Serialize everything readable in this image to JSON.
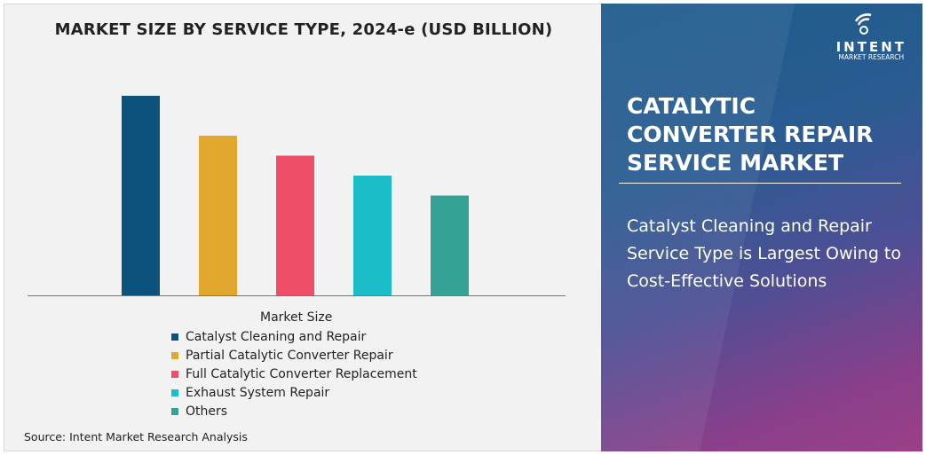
{
  "chart_data": {
    "type": "bar",
    "title": "MARKET SIZE BY SERVICE TYPE, 2024-e (USD BILLION)",
    "categories": [
      "Catalyst Cleaning and Repair",
      "Partial Catalytic Converter Repair",
      "Full Catalytic Converter Replacement",
      "Exhaust System Repair",
      "Others"
    ],
    "values": [
      100,
      80,
      70,
      60,
      50
    ],
    "colors": [
      "#0b527c",
      "#e1a62e",
      "#ef4d68",
      "#1bbdc9",
      "#36a196"
    ],
    "legend_title": "Market Size",
    "legend_position": "bottom",
    "grid": false,
    "ylim": [
      0,
      100
    ]
  },
  "source": "Source: Intent Market Research Analysis",
  "panel": {
    "title_lines": [
      "CATALYTIC",
      "CONVERTER REPAIR",
      "SERVICE MARKET"
    ],
    "description": "Catalyst Cleaning and Repair Service Type is Largest Owing to Cost-Effective Solutions",
    "logo_name": "INTENT",
    "logo_sub": "MARKET RESEARCH"
  }
}
